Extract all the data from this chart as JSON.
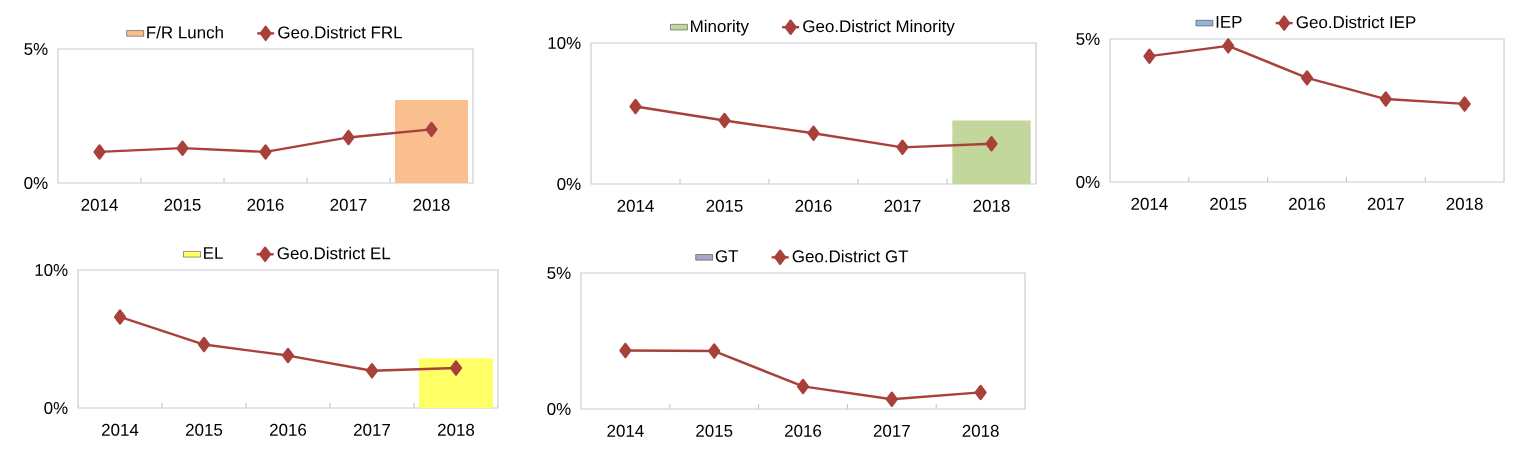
{
  "chart_data": [
    {
      "type": "bar",
      "categories": [
        "2014",
        "2015",
        "2016",
        "2017",
        "2018"
      ],
      "ylim": [
        0,
        5
      ],
      "yticks": [
        {
          "value": 0,
          "label": "0%"
        },
        {
          "value": 5,
          "label": "5%"
        }
      ],
      "legend": "top",
      "series": [
        {
          "name": "F/R Lunch",
          "color": "#f9bf8f",
          "values": [
            null,
            null,
            null,
            null,
            3.1
          ]
        },
        {
          "name": "Geo.District FRL",
          "type": "line",
          "marker": "diamond",
          "color": "#a9403b",
          "values": [
            1.16,
            1.3,
            1.16,
            1.7,
            2.0
          ]
        }
      ]
    },
    {
      "type": "bar",
      "categories": [
        "2014",
        "2015",
        "2016",
        "2017",
        "2018"
      ],
      "ylim": [
        0,
        10
      ],
      "yticks": [
        {
          "value": 0,
          "label": "0%"
        },
        {
          "value": 10,
          "label": "10%"
        }
      ],
      "legend": "top",
      "series": [
        {
          "name": "Minority",
          "color": "#c3d69b",
          "values": [
            null,
            null,
            null,
            null,
            4.5
          ]
        },
        {
          "name": "Geo.District Minority",
          "type": "line",
          "marker": "diamond",
          "color": "#a9403b",
          "values": [
            5.5,
            4.5,
            3.6,
            2.6,
            2.85
          ]
        }
      ]
    },
    {
      "type": "bar",
      "categories": [
        "2014",
        "2015",
        "2016",
        "2017",
        "2018"
      ],
      "ylim": [
        0,
        5
      ],
      "yticks": [
        {
          "value": 0,
          "label": "0%"
        },
        {
          "value": 5,
          "label": "5%"
        }
      ],
      "legend": "top",
      "series": [
        {
          "name": "IEP",
          "color": "#95b3d7",
          "values": [
            null,
            null,
            null,
            null,
            null
          ]
        },
        {
          "name": "Geo.District IEP",
          "type": "line",
          "marker": "diamond",
          "color": "#a9403b",
          "values": [
            4.4,
            4.76,
            3.64,
            2.9,
            2.73
          ]
        }
      ]
    },
    {
      "type": "bar",
      "categories": [
        "2014",
        "2015",
        "2016",
        "2017",
        "2018"
      ],
      "ylim": [
        0,
        10
      ],
      "yticks": [
        {
          "value": 0,
          "label": "0%"
        },
        {
          "value": 10,
          "label": "10%"
        }
      ],
      "legend": "top",
      "series": [
        {
          "name": "EL",
          "color": "#ffff66",
          "values": [
            null,
            null,
            null,
            null,
            3.6
          ]
        },
        {
          "name": "Geo.District EL",
          "type": "line",
          "marker": "diamond",
          "color": "#a9403b",
          "values": [
            6.6,
            4.6,
            3.8,
            2.7,
            2.9
          ]
        }
      ]
    },
    {
      "type": "bar",
      "categories": [
        "2014",
        "2015",
        "2016",
        "2017",
        "2018"
      ],
      "ylim": [
        0,
        5
      ],
      "yticks": [
        {
          "value": 0,
          "label": "0%"
        },
        {
          "value": 5,
          "label": "5%"
        }
      ],
      "legend": "top",
      "series": [
        {
          "name": "GT",
          "color": "#b3a2c7",
          "values": [
            null,
            null,
            null,
            null,
            null
          ]
        },
        {
          "name": "Geo.District GT",
          "type": "line",
          "marker": "diamond",
          "color": "#a9403b",
          "values": [
            2.15,
            2.13,
            0.83,
            0.36,
            0.61
          ]
        }
      ]
    }
  ]
}
